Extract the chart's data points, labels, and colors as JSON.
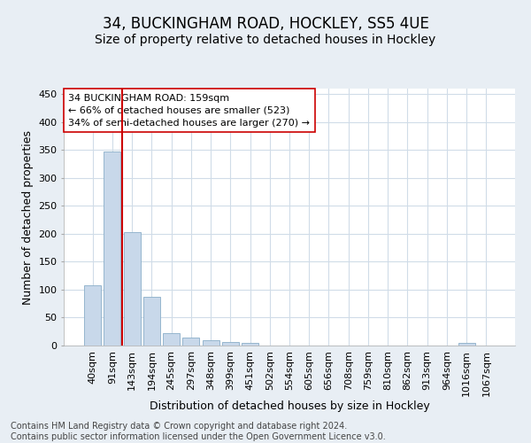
{
  "title_line1": "34, BUCKINGHAM ROAD, HOCKLEY, SS5 4UE",
  "title_line2": "Size of property relative to detached houses in Hockley",
  "xlabel": "Distribution of detached houses by size in Hockley",
  "ylabel": "Number of detached properties",
  "categories": [
    "40sqm",
    "91sqm",
    "143sqm",
    "194sqm",
    "245sqm",
    "297sqm",
    "348sqm",
    "399sqm",
    "451sqm",
    "502sqm",
    "554sqm",
    "605sqm",
    "656sqm",
    "708sqm",
    "759sqm",
    "810sqm",
    "862sqm",
    "913sqm",
    "964sqm",
    "1016sqm",
    "1067sqm"
  ],
  "values": [
    108,
    348,
    203,
    88,
    23,
    14,
    9,
    7,
    5,
    0,
    0,
    0,
    0,
    0,
    0,
    0,
    0,
    0,
    0,
    5,
    0
  ],
  "bar_color": "#c8d8ea",
  "bar_edge_color": "#8aaec8",
  "vline_color": "#cc0000",
  "vline_pos": 1.5,
  "annotation_text": "34 BUCKINGHAM ROAD: 159sqm\n← 66% of detached houses are smaller (523)\n34% of semi-detached houses are larger (270) →",
  "annotation_box_facecolor": "#ffffff",
  "annotation_box_edgecolor": "#cc0000",
  "ylim": [
    0,
    460
  ],
  "yticks": [
    0,
    50,
    100,
    150,
    200,
    250,
    300,
    350,
    400,
    450
  ],
  "background_color": "#e8eef4",
  "plot_background": "#ffffff",
  "grid_color": "#d0dce8",
  "title_fontsize": 12,
  "subtitle_fontsize": 10,
  "axis_label_fontsize": 9,
  "tick_fontsize": 8,
  "annotation_fontsize": 8,
  "footer_fontsize": 7,
  "footer_text": "Contains HM Land Registry data © Crown copyright and database right 2024.\nContains public sector information licensed under the Open Government Licence v3.0."
}
